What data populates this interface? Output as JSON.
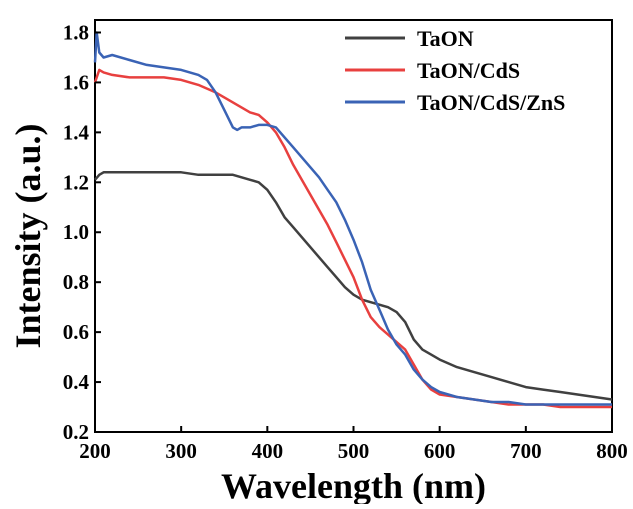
{
  "chart_data": {
    "type": "line",
    "title": "",
    "xlabel": "Wavelength (nm)",
    "ylabel": "Intensity (a.u.)",
    "xlim": [
      200,
      800
    ],
    "ylim": [
      0.2,
      1.85
    ],
    "xticks": [
      "200",
      "300",
      "400",
      "500",
      "600",
      "700",
      "800"
    ],
    "yticks": [
      "0.2",
      "0.4",
      "0.6",
      "0.8",
      "1.0",
      "1.2",
      "1.4",
      "1.6",
      "1.8"
    ],
    "grid": false,
    "legend_position": "top-right",
    "series": [
      {
        "name": "TaON",
        "color": "#404040",
        "x": [
          200,
          205,
          210,
          220,
          240,
          260,
          280,
          300,
          320,
          340,
          360,
          370,
          380,
          390,
          400,
          410,
          420,
          430,
          440,
          450,
          460,
          470,
          480,
          490,
          500,
          510,
          520,
          530,
          540,
          550,
          560,
          570,
          580,
          590,
          600,
          620,
          640,
          660,
          680,
          700,
          720,
          740,
          760,
          780,
          800
        ],
        "values": [
          1.21,
          1.23,
          1.24,
          1.24,
          1.24,
          1.24,
          1.24,
          1.24,
          1.23,
          1.23,
          1.23,
          1.22,
          1.21,
          1.2,
          1.17,
          1.12,
          1.06,
          1.02,
          0.98,
          0.94,
          0.9,
          0.86,
          0.82,
          0.78,
          0.75,
          0.73,
          0.72,
          0.71,
          0.7,
          0.68,
          0.64,
          0.57,
          0.53,
          0.51,
          0.49,
          0.46,
          0.44,
          0.42,
          0.4,
          0.38,
          0.37,
          0.36,
          0.35,
          0.34,
          0.33
        ]
      },
      {
        "name": "TaON/CdS",
        "color": "#e8403f",
        "x": [
          200,
          205,
          210,
          220,
          240,
          260,
          280,
          300,
          320,
          340,
          350,
          360,
          370,
          380,
          390,
          400,
          410,
          420,
          430,
          440,
          450,
          460,
          470,
          480,
          490,
          500,
          510,
          520,
          530,
          540,
          550,
          560,
          570,
          580,
          590,
          600,
          620,
          640,
          660,
          680,
          700,
          720,
          740,
          760,
          780,
          800
        ],
        "values": [
          1.6,
          1.65,
          1.64,
          1.63,
          1.62,
          1.62,
          1.62,
          1.61,
          1.59,
          1.56,
          1.54,
          1.52,
          1.5,
          1.48,
          1.47,
          1.44,
          1.4,
          1.34,
          1.27,
          1.21,
          1.15,
          1.09,
          1.03,
          0.96,
          0.89,
          0.82,
          0.73,
          0.66,
          0.62,
          0.59,
          0.56,
          0.53,
          0.47,
          0.41,
          0.37,
          0.35,
          0.34,
          0.33,
          0.32,
          0.31,
          0.31,
          0.31,
          0.3,
          0.3,
          0.3,
          0.3
        ]
      },
      {
        "name": "TaON/CdS/ZnS",
        "color": "#3a63b5",
        "x": [
          200,
          202,
          205,
          210,
          220,
          240,
          260,
          280,
          300,
          320,
          330,
          340,
          350,
          360,
          365,
          370,
          380,
          390,
          400,
          410,
          420,
          430,
          440,
          450,
          460,
          470,
          480,
          490,
          500,
          510,
          520,
          530,
          540,
          550,
          560,
          570,
          580,
          590,
          600,
          620,
          640,
          660,
          680,
          700,
          720,
          740,
          760,
          780,
          800
        ],
        "values": [
          1.68,
          1.8,
          1.72,
          1.7,
          1.71,
          1.69,
          1.67,
          1.66,
          1.65,
          1.63,
          1.61,
          1.56,
          1.49,
          1.42,
          1.41,
          1.42,
          1.42,
          1.43,
          1.43,
          1.42,
          1.38,
          1.34,
          1.3,
          1.26,
          1.22,
          1.17,
          1.12,
          1.05,
          0.97,
          0.88,
          0.77,
          0.69,
          0.61,
          0.55,
          0.51,
          0.45,
          0.41,
          0.38,
          0.36,
          0.34,
          0.33,
          0.32,
          0.32,
          0.31,
          0.31,
          0.31,
          0.31,
          0.31,
          0.31
        ]
      }
    ]
  }
}
